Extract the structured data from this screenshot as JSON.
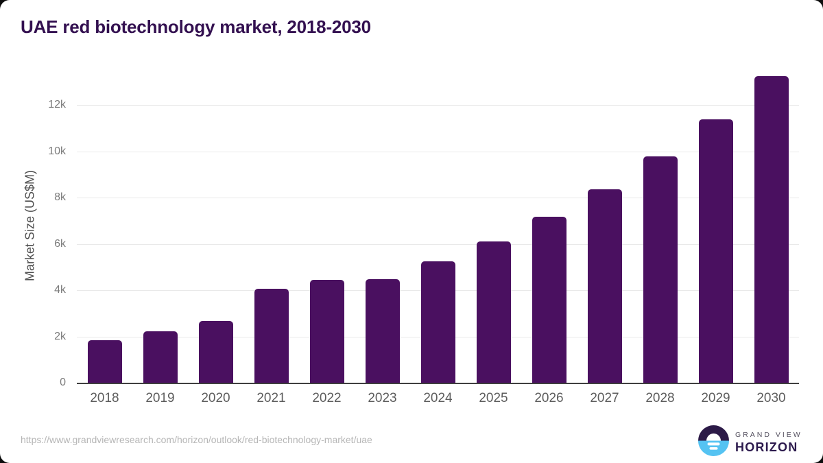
{
  "title": "UAE red biotechnology market, 2018-2030",
  "chart_data": {
    "type": "bar",
    "title": "UAE red biotechnology market, 2018-2030",
    "categories": [
      "2018",
      "2019",
      "2020",
      "2021",
      "2022",
      "2023",
      "2024",
      "2025",
      "2026",
      "2027",
      "2028",
      "2029",
      "2030"
    ],
    "values": [
      1840,
      2220,
      2660,
      4060,
      4440,
      4470,
      5240,
      6100,
      7170,
      8360,
      9780,
      11380,
      13250
    ],
    "xlabel": "",
    "ylabel": "Market Size (US$M)",
    "ylim": [
      0,
      13570
    ],
    "yticks": [
      {
        "v": 0,
        "label": "0"
      },
      {
        "v": 2000,
        "label": "2k"
      },
      {
        "v": 4000,
        "label": "4k"
      },
      {
        "v": 6000,
        "label": "6k"
      },
      {
        "v": 8000,
        "label": "8k"
      },
      {
        "v": 10000,
        "label": "10k"
      },
      {
        "v": 12000,
        "label": "12k"
      }
    ],
    "grid": true,
    "legend": "none",
    "bar_color": "#4a1060"
  },
  "colors": {
    "title_text": "#331050",
    "bar": "#4a1060",
    "logo_dark": "#2c1a47",
    "logo_blue": "#55c3f2"
  },
  "footer": {
    "source_url": "https://www.grandviewresearch.com/horizon/outlook/red-biotechnology-market/uae",
    "brand_line1": "GRAND VIEW",
    "brand_line2": "HORIZON"
  }
}
